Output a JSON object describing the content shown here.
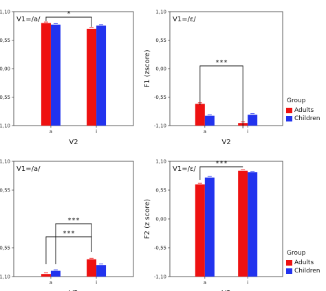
{
  "legend": {
    "title": "Group",
    "items": [
      {
        "label": "Adults",
        "color": "#ee1111"
      },
      {
        "label": "Children",
        "color": "#2233ee"
      }
    ]
  },
  "chart_data": [
    {
      "type": "bar",
      "panel_label": "V1=/a/",
      "ylabel": "F1 (zscore)",
      "xlabel": "V2",
      "categories": [
        "a",
        "i"
      ],
      "ylim": [
        -1.1,
        1.1
      ],
      "yticks": [
        "1,10",
        "0,55",
        "0,00",
        "-0,55",
        "-1,10"
      ],
      "series": [
        {
          "name": "Adults",
          "values": [
            0.88,
            0.77
          ]
        },
        {
          "name": "Children",
          "values": [
            0.85,
            0.83
          ]
        }
      ],
      "annotations": [
        {
          "text": "*",
          "from": "a",
          "to": "i"
        }
      ]
    },
    {
      "type": "bar",
      "panel_label": "V1=/ε/",
      "ylabel": "F1 (zscore)",
      "xlabel": "V2",
      "categories": [
        "a",
        "i"
      ],
      "ylim": [
        -1.1,
        1.1
      ],
      "yticks": [
        "1,10",
        "0,55",
        "0,00",
        "-0,55",
        "-1,10"
      ],
      "series": [
        {
          "name": "Adults",
          "values": [
            -0.68,
            -1.05
          ]
        },
        {
          "name": "Children",
          "values": [
            -0.91,
            -0.89
          ]
        }
      ],
      "annotations": [
        {
          "text": "***",
          "from": "a",
          "to": "i"
        }
      ]
    },
    {
      "type": "bar",
      "panel_label": "V1=/a/",
      "ylabel": "F2 (z score)",
      "xlabel": "V2",
      "categories": [
        "a",
        "i"
      ],
      "ylim": [
        -1.1,
        1.1
      ],
      "yticks": [
        "1,10",
        "0,55",
        "-0,55",
        "-1,10"
      ],
      "series": [
        {
          "name": "Adults",
          "values": [
            -1.05,
            -0.77
          ]
        },
        {
          "name": "Children",
          "values": [
            -0.99,
            -0.88
          ]
        }
      ],
      "annotations": [
        {
          "text": "***",
          "from": "a",
          "to": "i"
        },
        {
          "text": "***",
          "from": "a",
          "to": "i"
        }
      ]
    },
    {
      "type": "bar",
      "panel_label": "V1=/ε/",
      "ylabel": "F2 (z score)",
      "xlabel": "V2",
      "categories": [
        "a",
        "i"
      ],
      "ylim": [
        -1.1,
        1.1
      ],
      "yticks": [
        "1,10",
        "0,55",
        "0,00",
        "-0,55",
        "-1,10"
      ],
      "series": [
        {
          "name": "Adults",
          "values": [
            0.66,
            0.92
          ]
        },
        {
          "name": "Children",
          "values": [
            0.79,
            0.89
          ]
        }
      ],
      "annotations": [
        {
          "text": "***",
          "from": "a",
          "to": "i"
        }
      ]
    }
  ]
}
